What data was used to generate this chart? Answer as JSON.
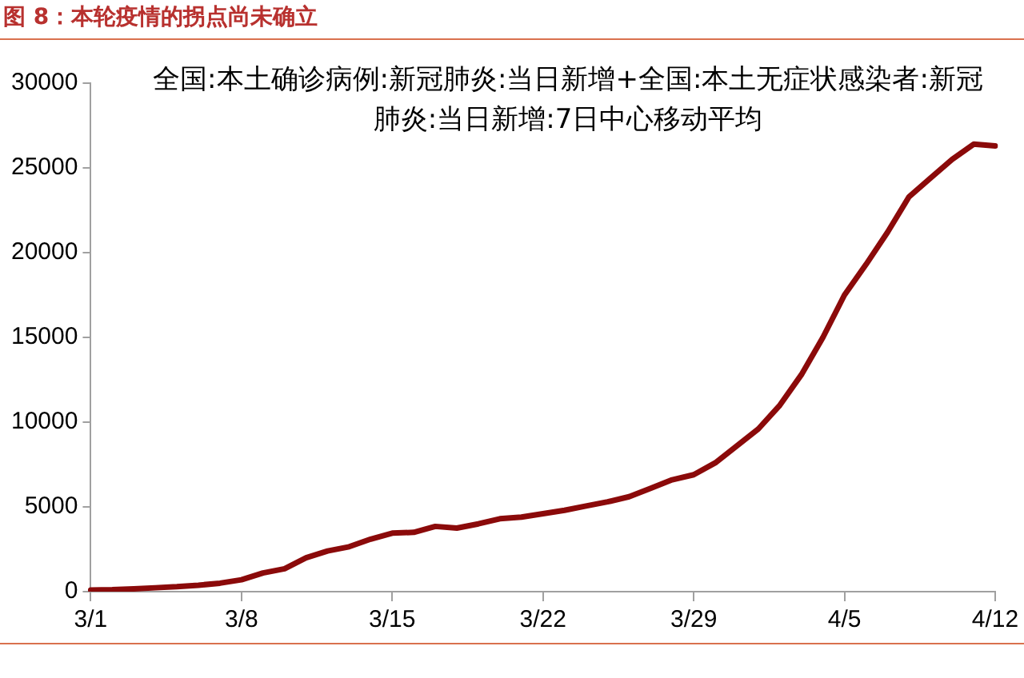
{
  "chart_data": {
    "type": "line",
    "title": "图 8：本轮疫情的拐点尚未确立",
    "subtitle": "全国:本土确诊病例:新冠肺炎:当日新增+全国:本土无症状感染者:新冠肺炎:当日新增:7日中心移动平均",
    "categories": [
      "3/1",
      null,
      null,
      null,
      null,
      null,
      null,
      "3/8",
      null,
      null,
      null,
      null,
      null,
      null,
      "3/15",
      null,
      null,
      null,
      null,
      null,
      null,
      "3/22",
      null,
      null,
      null,
      null,
      null,
      null,
      "3/29",
      null,
      null,
      null,
      null,
      null,
      null,
      "4/5",
      null,
      null,
      null,
      null,
      null,
      null,
      "4/12"
    ],
    "series": [
      {
        "color": "#8b0a0a",
        "values": [
          100,
          120,
          170,
          230,
          290,
          380,
          500,
          700,
          1100,
          1350,
          2000,
          2400,
          2650,
          3100,
          3450,
          3500,
          3850,
          3750,
          4000,
          4300,
          4400,
          4600,
          4800,
          5050,
          5300,
          5600,
          6100,
          6600,
          6900,
          7600,
          8600,
          9600,
          11000,
          12800,
          15000,
          17500,
          19300,
          21200,
          23300,
          24400,
          25500,
          26400,
          26300
        ]
      }
    ],
    "ylim": [
      0,
      30000
    ],
    "yticks": [
      0,
      5000,
      10000,
      15000,
      20000,
      25000,
      30000
    ],
    "grid": false,
    "legend": false,
    "marker": "none",
    "line_style": "solid"
  }
}
